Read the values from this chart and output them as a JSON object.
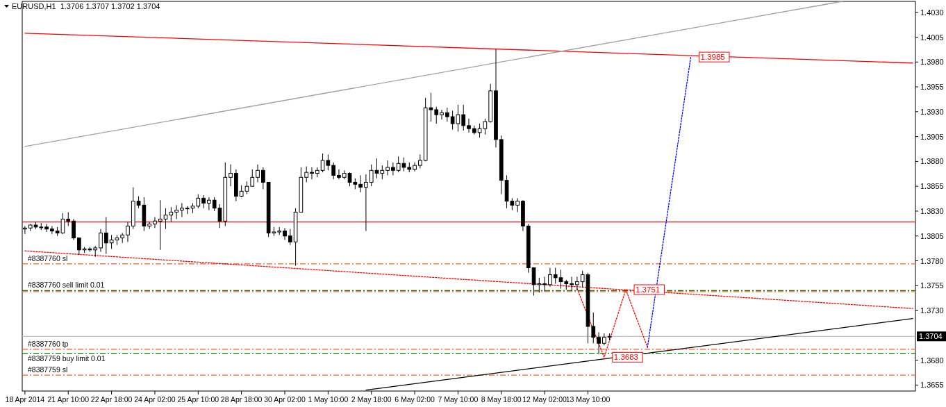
{
  "chart_data": {
    "type": "candlestick",
    "title": "EURUSD,H1  1.3706 1.3707 1.3702 1.3704",
    "color": "#000000",
    "categories": [
      "18 Apr 2014",
      null,
      null,
      null,
      null,
      null,
      null,
      null,
      "21 Apr 10:00",
      null,
      null,
      null,
      null,
      null,
      null,
      null,
      "22 Apr 18:00",
      null,
      null,
      null,
      null,
      null,
      null,
      null,
      "24 Apr 02:00",
      null,
      null,
      null,
      null,
      null,
      null,
      null,
      "25 Apr 10:00",
      null,
      null,
      null,
      null,
      null,
      null,
      null,
      "28 Apr 18:00",
      null,
      null,
      null,
      null,
      null,
      null,
      null,
      "30 Apr 02:00",
      null,
      null,
      null,
      null,
      null,
      null,
      null,
      "1 May 10:00",
      null,
      null,
      null,
      null,
      null,
      null,
      null,
      "2 May 18:00",
      null,
      null,
      null,
      null,
      null,
      null,
      null,
      "6 May 02:00",
      null,
      null,
      null,
      null,
      null,
      null,
      null,
      "7 May 10:00",
      null,
      null,
      null,
      null,
      null,
      null,
      null,
      "8 May 18:00",
      null,
      null,
      null,
      null,
      null,
      null,
      null,
      "12 May 02:00",
      null,
      null,
      null,
      null,
      null,
      null,
      null,
      "13 May 10:00",
      null,
      null,
      null,
      null,
      null,
      null,
      null,
      null,
      null,
      null,
      null,
      null,
      null,
      null,
      null,
      null,
      null,
      null,
      null,
      null,
      null,
      null,
      null,
      null,
      null,
      null,
      null,
      null,
      null,
      null,
      null,
      null,
      null,
      null,
      null,
      null,
      null,
      null,
      null,
      null,
      null,
      null,
      null,
      null,
      null,
      null,
      null,
      null,
      null,
      null,
      null,
      null,
      null,
      null,
      null,
      null,
      null,
      null,
      null,
      null
    ],
    "ohlc": [
      [
        1.3812,
        1.3815,
        1.3807,
        1.3813
      ],
      [
        1.3813,
        1.3817,
        1.381,
        1.3816
      ],
      [
        1.3816,
        1.3819,
        1.3812,
        1.3814
      ],
      [
        1.3814,
        1.3818,
        1.3811,
        1.3814
      ],
      [
        1.3814,
        1.3817,
        1.3809,
        1.3812
      ],
      [
        1.3812,
        1.3815,
        1.3807,
        1.381
      ],
      [
        1.381,
        1.3814,
        1.3805,
        1.3808
      ],
      [
        1.3808,
        1.3828,
        1.3807,
        1.3822
      ],
      [
        1.3822,
        1.3829,
        1.3815,
        1.382
      ],
      [
        1.382,
        1.3822,
        1.3801,
        1.3803
      ],
      [
        1.3803,
        1.3803,
        1.3786,
        1.3791
      ],
      [
        1.3791,
        1.3794,
        1.3788,
        1.3792
      ],
      [
        1.3792,
        1.3794,
        1.3789,
        1.3791
      ],
      [
        1.3791,
        1.3795,
        1.3784,
        1.3793
      ],
      [
        1.3793,
        1.3812,
        1.3789,
        1.3808
      ],
      [
        1.3808,
        1.3824,
        1.3787,
        1.3798
      ],
      [
        1.3798,
        1.3806,
        1.3792,
        1.3801
      ],
      [
        1.3801,
        1.3806,
        1.3796,
        1.3803
      ],
      [
        1.3803,
        1.3808,
        1.3798,
        1.3806
      ],
      [
        1.3806,
        1.3819,
        1.3799,
        1.3815
      ],
      [
        1.3815,
        1.3854,
        1.3812,
        1.384
      ],
      [
        1.384,
        1.3845,
        1.3833,
        1.3836
      ],
      [
        1.3836,
        1.3844,
        1.381,
        1.3815
      ],
      [
        1.3815,
        1.3819,
        1.3812,
        1.3817
      ],
      [
        1.3817,
        1.3824,
        1.3813,
        1.382
      ],
      [
        1.382,
        1.3841,
        1.3791,
        1.3822
      ],
      [
        1.3822,
        1.3833,
        1.3812,
        1.3826
      ],
      [
        1.3826,
        1.3834,
        1.3819,
        1.3829
      ],
      [
        1.3829,
        1.3836,
        1.3822,
        1.3831
      ],
      [
        1.3831,
        1.3838,
        1.3824,
        1.3833
      ],
      [
        1.3833,
        1.3835,
        1.3827,
        1.3833
      ],
      [
        1.3833,
        1.3838,
        1.3828,
        1.3835
      ],
      [
        1.3835,
        1.3847,
        1.3833,
        1.3843
      ],
      [
        1.3843,
        1.3846,
        1.3833,
        1.3838
      ],
      [
        1.3838,
        1.3844,
        1.3831,
        1.3841
      ],
      [
        1.3841,
        1.3844,
        1.383,
        1.3833
      ],
      [
        1.3833,
        1.3837,
        1.3813,
        1.382
      ],
      [
        1.382,
        1.3879,
        1.3815,
        1.3864
      ],
      [
        1.3864,
        1.3877,
        1.3855,
        1.3868
      ],
      [
        1.3868,
        1.3872,
        1.384,
        1.3845
      ],
      [
        1.3845,
        1.3856,
        1.3844,
        1.385
      ],
      [
        1.385,
        1.386,
        1.3847,
        1.3855
      ],
      [
        1.3855,
        1.3872,
        1.3855,
        1.3864
      ],
      [
        1.3864,
        1.3877,
        1.3859,
        1.3871
      ],
      [
        1.3871,
        1.3874,
        1.3852,
        1.3859
      ],
      [
        1.3859,
        1.3859,
        1.3804,
        1.3808
      ],
      [
        1.3808,
        1.3814,
        1.3805,
        1.3809
      ],
      [
        1.3809,
        1.3814,
        1.3806,
        1.381
      ],
      [
        1.381,
        1.3813,
        1.3801,
        1.3805
      ],
      [
        1.3805,
        1.3812,
        1.3796,
        1.3799
      ],
      [
        1.3799,
        1.3833,
        1.3775,
        1.3829
      ],
      [
        1.3829,
        1.3874,
        1.3829,
        1.3864
      ],
      [
        1.3864,
        1.3875,
        1.3859,
        1.3869
      ],
      [
        1.3869,
        1.3874,
        1.3862,
        1.3868
      ],
      [
        1.3868,
        1.3874,
        1.3864,
        1.3871
      ],
      [
        1.3871,
        1.3888,
        1.3869,
        1.3881
      ],
      [
        1.3881,
        1.3887,
        1.3871,
        1.3876
      ],
      [
        1.3876,
        1.3879,
        1.3862,
        1.3866
      ],
      [
        1.3866,
        1.3872,
        1.3862,
        1.3864
      ],
      [
        1.3864,
        1.3871,
        1.3862,
        1.3868
      ],
      [
        1.3868,
        1.3869,
        1.3855,
        1.3859
      ],
      [
        1.3859,
        1.3863,
        1.3852,
        1.3857
      ],
      [
        1.3857,
        1.3866,
        1.3849,
        1.3854
      ],
      [
        1.3854,
        1.3867,
        1.381,
        1.3859
      ],
      [
        1.3859,
        1.3877,
        1.3855,
        1.3871
      ],
      [
        1.3871,
        1.3883,
        1.3863,
        1.3868
      ],
      [
        1.3868,
        1.3876,
        1.3862,
        1.3871
      ],
      [
        1.3871,
        1.3881,
        1.3866,
        1.3874
      ],
      [
        1.3874,
        1.3879,
        1.3866,
        1.3871
      ],
      [
        1.3871,
        1.3885,
        1.3869,
        1.3878
      ],
      [
        1.3878,
        1.3884,
        1.387,
        1.3874
      ],
      [
        1.3874,
        1.3879,
        1.3869,
        1.3872
      ],
      [
        1.3872,
        1.3879,
        1.387,
        1.3876
      ],
      [
        1.3876,
        1.3887,
        1.3873,
        1.3881
      ],
      [
        1.3881,
        1.3944,
        1.388,
        1.3934
      ],
      [
        1.3934,
        1.3949,
        1.392,
        1.3932
      ],
      [
        1.3932,
        1.3935,
        1.3918,
        1.3927
      ],
      [
        1.3927,
        1.3932,
        1.3922,
        1.3929
      ],
      [
        1.3929,
        1.3934,
        1.392,
        1.3925
      ],
      [
        1.3925,
        1.3931,
        1.3912,
        1.3918
      ],
      [
        1.3918,
        1.3937,
        1.391,
        1.3927
      ],
      [
        1.3927,
        1.3937,
        1.3911,
        1.3916
      ],
      [
        1.3916,
        1.3923,
        1.3909,
        1.3913
      ],
      [
        1.3913,
        1.3916,
        1.3907,
        1.3909
      ],
      [
        1.3909,
        1.3918,
        1.3904,
        1.3913
      ],
      [
        1.3913,
        1.3923,
        1.3907,
        1.392
      ],
      [
        1.392,
        1.3958,
        1.3919,
        1.3951
      ],
      [
        1.3951,
        1.3993,
        1.3894,
        1.3902
      ],
      [
        1.3902,
        1.3906,
        1.3847,
        1.3861
      ],
      [
        1.3861,
        1.3866,
        1.3833,
        1.384
      ],
      [
        1.384,
        1.3843,
        1.3831,
        1.3836
      ],
      [
        1.3836,
        1.3843,
        1.3829,
        1.384
      ],
      [
        1.384,
        1.3841,
        1.381,
        1.3815
      ],
      [
        1.3815,
        1.3817,
        1.3768,
        1.3773
      ],
      [
        1.3773,
        1.3773,
        1.3745,
        1.3756
      ],
      [
        1.3756,
        1.3763,
        1.3748,
        1.3757
      ],
      [
        1.3757,
        1.3764,
        1.3749,
        1.3756
      ],
      [
        1.3756,
        1.3773,
        1.3754,
        1.3766
      ],
      [
        1.3766,
        1.3773,
        1.3757,
        1.3763
      ],
      [
        1.3763,
        1.3771,
        1.3752,
        1.3759
      ],
      [
        1.3759,
        1.3761,
        1.3751,
        1.3757
      ],
      [
        1.3757,
        1.3764,
        1.375,
        1.3756
      ],
      [
        1.3756,
        1.3764,
        1.375,
        1.3759
      ],
      [
        1.3759,
        1.377,
        1.3753,
        1.3766
      ],
      [
        1.3766,
        1.3768,
        1.3697,
        1.3714
      ],
      [
        1.3714,
        1.3728,
        1.3697,
        1.3703
      ],
      [
        1.3703,
        1.3708,
        1.3686,
        1.3697
      ],
      [
        1.3697,
        1.3707,
        1.3695,
        1.3703
      ],
      [
        1.3703,
        1.3707,
        1.37,
        1.3704
      ],
      null,
      null,
      null,
      null,
      null,
      null,
      null,
      null,
      null,
      null,
      null,
      null,
      null,
      null,
      null,
      null,
      null,
      null,
      null,
      null,
      null,
      null,
      null,
      null,
      null,
      null,
      null,
      null,
      null,
      null,
      null,
      null,
      null,
      null,
      null,
      null,
      null,
      null,
      null,
      null,
      null,
      null,
      null,
      null,
      null,
      null,
      null,
      null,
      null,
      null,
      null,
      null,
      null,
      null,
      null,
      null
    ],
    "series": [
      {
        "type": "line",
        "color": "#ff0000",
        "line_style": "solid",
        "values": [
          1.4009,
          null,
          null,
          null,
          null,
          null,
          null,
          null,
          null,
          null,
          null,
          null,
          null,
          null,
          null,
          null,
          null,
          null,
          null,
          null,
          null,
          null,
          null,
          null,
          null,
          null,
          null,
          null,
          null,
          null,
          null,
          null,
          null,
          null,
          null,
          null,
          null,
          null,
          null,
          null,
          null,
          null,
          null,
          null,
          null,
          null,
          null,
          null,
          null,
          null,
          null,
          null,
          null,
          null,
          null,
          null,
          null,
          null,
          null,
          null,
          null,
          null,
          null,
          null,
          null,
          null,
          null,
          null,
          null,
          null,
          null,
          null,
          null,
          null,
          null,
          null,
          null,
          null,
          null,
          null,
          null,
          null,
          null,
          null,
          null,
          null,
          null,
          null,
          null,
          null,
          null,
          null,
          null,
          null,
          null,
          null,
          null,
          null,
          null,
          null,
          null,
          null,
          null,
          null,
          null,
          null,
          null,
          null,
          null,
          null,
          null,
          null,
          null,
          null,
          null,
          null,
          null,
          null,
          null,
          null,
          null,
          null,
          null,
          null,
          null,
          null,
          null,
          null,
          null,
          null,
          null,
          null,
          null,
          null,
          null,
          null,
          null,
          null,
          null,
          null,
          null,
          null,
          null,
          null,
          null,
          null,
          null,
          null,
          null,
          null,
          null,
          null,
          null,
          null,
          null,
          null,
          null,
          null,
          null,
          null,
          null,
          null,
          null,
          null,
          1.3979
        ]
      },
      {
        "type": "line",
        "color": "#a0a0a0",
        "line_style": "solid",
        "values": [
          1.3895,
          null,
          null,
          null,
          null,
          null,
          null,
          null,
          null,
          null,
          null,
          null,
          null,
          null,
          null,
          null,
          null,
          null,
          null,
          null,
          null,
          null,
          null,
          null,
          null,
          null,
          null,
          null,
          null,
          null,
          null,
          null,
          null,
          null,
          null,
          null,
          null,
          null,
          null,
          null,
          null,
          null,
          null,
          null,
          null,
          null,
          null,
          null,
          null,
          null,
          null,
          null,
          null,
          null,
          null,
          null,
          null,
          null,
          null,
          null,
          null,
          null,
          null,
          null,
          null,
          null,
          null,
          null,
          null,
          null,
          null,
          null,
          null,
          null,
          null,
          null,
          null,
          null,
          null,
          null,
          null,
          null,
          null,
          null,
          null,
          null,
          null,
          null,
          null,
          null,
          null,
          null,
          null,
          null,
          null,
          null,
          null,
          null,
          null,
          null,
          null,
          null,
          null,
          null,
          null,
          null,
          null,
          null,
          null,
          null,
          null,
          null,
          null,
          null,
          null,
          null,
          null,
          null,
          null,
          null,
          null,
          null,
          null,
          null,
          null,
          null,
          null,
          null,
          null,
          null,
          null,
          null,
          null,
          null,
          null,
          null,
          null,
          null,
          null,
          null,
          null,
          null,
          null,
          null,
          null,
          null,
          null,
          null,
          null,
          null,
          null,
          1.4041,
          null,
          null,
          null,
          null,
          null,
          null,
          null,
          null,
          null,
          null,
          null,
          null,
          null
        ]
      },
      {
        "type": "line",
        "color": "#ff0000",
        "line_style": "dotted",
        "values": [
          1.379,
          null,
          null,
          null,
          null,
          null,
          null,
          null,
          null,
          null,
          null,
          null,
          null,
          null,
          null,
          null,
          null,
          null,
          null,
          null,
          null,
          null,
          null,
          null,
          null,
          null,
          null,
          null,
          null,
          null,
          null,
          null,
          null,
          null,
          null,
          null,
          null,
          null,
          null,
          null,
          null,
          null,
          null,
          null,
          null,
          null,
          null,
          null,
          null,
          null,
          null,
          null,
          null,
          null,
          null,
          null,
          null,
          null,
          null,
          null,
          null,
          null,
          null,
          null,
          null,
          null,
          null,
          null,
          null,
          null,
          null,
          null,
          null,
          null,
          null,
          null,
          null,
          null,
          null,
          null,
          null,
          null,
          null,
          null,
          null,
          null,
          null,
          null,
          null,
          null,
          null,
          null,
          null,
          null,
          null,
          null,
          null,
          null,
          null,
          null,
          null,
          null,
          null,
          null,
          null,
          null,
          null,
          null,
          null,
          null,
          null,
          null,
          null,
          null,
          null,
          null,
          null,
          null,
          null,
          null,
          null,
          null,
          null,
          null,
          null,
          null,
          null,
          null,
          null,
          null,
          null,
          null,
          null,
          null,
          null,
          null,
          null,
          null,
          null,
          null,
          null,
          null,
          null,
          null,
          null,
          null,
          null,
          null,
          null,
          null,
          null,
          null,
          null,
          null,
          null,
          null,
          null,
          null,
          null,
          null,
          null,
          null,
          null,
          null,
          1.3732
        ]
      },
      {
        "type": "line",
        "color": "#000000",
        "line_style": "solid",
        "values": [
          null,
          null,
          null,
          null,
          null,
          null,
          null,
          null,
          null,
          null,
          null,
          null,
          null,
          null,
          null,
          null,
          null,
          null,
          null,
          null,
          null,
          null,
          null,
          null,
          null,
          null,
          null,
          null,
          null,
          null,
          null,
          null,
          null,
          null,
          null,
          null,
          null,
          null,
          null,
          null,
          null,
          null,
          null,
          null,
          null,
          null,
          null,
          null,
          null,
          null,
          null,
          null,
          null,
          null,
          null,
          null,
          null,
          null,
          null,
          null,
          null,
          null,
          null,
          1.365,
          null,
          null,
          null,
          null,
          null,
          null,
          null,
          null,
          null,
          null,
          null,
          null,
          null,
          null,
          null,
          null,
          null,
          null,
          null,
          null,
          null,
          null,
          null,
          null,
          null,
          null,
          null,
          null,
          null,
          null,
          null,
          null,
          null,
          null,
          null,
          null,
          null,
          null,
          null,
          null,
          null,
          null,
          null,
          null,
          null,
          null,
          null,
          null,
          null,
          null,
          null,
          null,
          null,
          null,
          null,
          null,
          null,
          null,
          null,
          null,
          null,
          null,
          null,
          null,
          null,
          null,
          null,
          null,
          null,
          null,
          null,
          null,
          null,
          null,
          null,
          null,
          null,
          null,
          null,
          null,
          null,
          null,
          null,
          null,
          null,
          null,
          null,
          null,
          null,
          null,
          null,
          null,
          null,
          null,
          null,
          null,
          null,
          null,
          null,
          null,
          1.3722
        ]
      },
      {
        "type": "line",
        "color": "#ff0000",
        "line_style": "dotted",
        "values": [
          null,
          null,
          null,
          null,
          null,
          null,
          null,
          null,
          null,
          null,
          null,
          null,
          null,
          null,
          null,
          null,
          null,
          null,
          null,
          null,
          null,
          null,
          null,
          null,
          null,
          null,
          null,
          null,
          null,
          null,
          null,
          null,
          null,
          null,
          null,
          null,
          null,
          null,
          null,
          null,
          null,
          null,
          null,
          null,
          null,
          null,
          null,
          null,
          null,
          null,
          null,
          null,
          null,
          null,
          null,
          null,
          null,
          null,
          null,
          null,
          null,
          null,
          null,
          null,
          null,
          null,
          null,
          null,
          null,
          null,
          null,
          null,
          null,
          null,
          null,
          null,
          null,
          null,
          null,
          null,
          null,
          null,
          null,
          null,
          null,
          null,
          null,
          null,
          null,
          null,
          null,
          null,
          null,
          null,
          null,
          null,
          null,
          null,
          null,
          null,
          null,
          null,
          1.3752,
          null,
          null,
          null,
          null,
          1.3683,
          null,
          null,
          null,
          1.3751,
          null,
          null,
          null,
          1.3693,
          null,
          null,
          null,
          null,
          null,
          null,
          null,
          null,
          null,
          null,
          null,
          null,
          null,
          null,
          null,
          null,
          null,
          null,
          null,
          null,
          null,
          null,
          null,
          null,
          null,
          null,
          null,
          null,
          null,
          null,
          null,
          null,
          null,
          null,
          null,
          null,
          null,
          null,
          null,
          null,
          null,
          null,
          null,
          null,
          null,
          null,
          null,
          null,
          null
        ]
      },
      {
        "type": "line",
        "color": "#0000ff",
        "line_style": "dotted",
        "values": [
          null,
          null,
          null,
          null,
          null,
          null,
          null,
          null,
          null,
          null,
          null,
          null,
          null,
          null,
          null,
          null,
          null,
          null,
          null,
          null,
          null,
          null,
          null,
          null,
          null,
          null,
          null,
          null,
          null,
          null,
          null,
          null,
          null,
          null,
          null,
          null,
          null,
          null,
          null,
          null,
          null,
          null,
          null,
          null,
          null,
          null,
          null,
          null,
          null,
          null,
          null,
          null,
          null,
          null,
          null,
          null,
          null,
          null,
          null,
          null,
          null,
          null,
          null,
          null,
          null,
          null,
          null,
          null,
          null,
          null,
          null,
          null,
          null,
          null,
          null,
          null,
          null,
          null,
          null,
          null,
          null,
          null,
          null,
          null,
          null,
          null,
          null,
          null,
          null,
          null,
          null,
          null,
          null,
          null,
          null,
          null,
          null,
          null,
          null,
          null,
          null,
          null,
          null,
          null,
          null,
          null,
          null,
          null,
          null,
          null,
          null,
          null,
          null,
          null,
          null,
          1.3693,
          null,
          null,
          null,
          null,
          null,
          null,
          null,
          1.3985,
          null,
          null,
          null,
          null,
          null,
          null,
          null,
          null,
          null,
          null,
          null,
          null,
          null,
          null,
          null,
          null,
          null,
          null,
          null,
          null,
          null,
          null,
          null,
          null,
          null,
          null,
          null,
          null,
          null,
          null,
          null,
          null,
          null,
          null,
          null,
          null,
          null,
          null,
          null,
          null,
          null
        ]
      }
    ],
    "ref_lines": [
      {
        "axis": "y",
        "value": 1.3819,
        "color": "#ff0000",
        "line_style": "solid"
      },
      {
        "axis": "y",
        "value": 1.3777,
        "label": "#8387760 sl",
        "color": "#ff5a1e",
        "line_style": "dashed"
      },
      {
        "axis": "y",
        "value": 1.375,
        "label": "#8387760 sell limit 0.01",
        "color": "#008000",
        "line_style": "dashed"
      },
      {
        "axis": "y",
        "value": 1.3749,
        "color": "#ff5a1e",
        "line_style": "dashed"
      },
      {
        "axis": "y",
        "value": 1.3704,
        "label": "1.3704",
        "color": "#c0c0c0",
        "line_style": "solid"
      },
      {
        "axis": "y",
        "value": 1.3691,
        "label": "#8387760 tp",
        "color": "#ff5a1e",
        "line_style": "dashed"
      },
      {
        "axis": "y",
        "value": 1.3687,
        "label": "#8387759 buy limit 0.01",
        "color": "#008000",
        "line_style": "dashed"
      },
      {
        "axis": "y",
        "value": 1.3665,
        "label": "#8387759 sl",
        "color": "#ff5a1e",
        "line_style": "dashed"
      }
    ],
    "annotations": [
      {
        "text": "1.3985",
        "y": 1.3985
      },
      {
        "text": "1.3751",
        "y": 1.3751
      },
      {
        "text": "1.3683",
        "y": 1.3683
      }
    ],
    "ylim": [
      1.3649,
      1.4041
    ],
    "yticks": [
      1.3655,
      {
        "value": 1.368,
        "label": "1.3680"
      },
      {
        "value": 1.373,
        "label": "1.3730"
      },
      1.3755,
      {
        "value": 1.378,
        "label": "1.3780"
      },
      1.3805,
      {
        "value": 1.383,
        "label": "1.3830"
      },
      1.3855,
      {
        "value": 1.388,
        "label": "1.3880"
      },
      1.3905,
      {
        "value": 1.393,
        "label": "1.3930"
      },
      1.3955,
      {
        "value": 1.398,
        "label": "1.3980"
      },
      1.4005,
      {
        "value": 1.403,
        "label": "1.4030"
      }
    ]
  }
}
